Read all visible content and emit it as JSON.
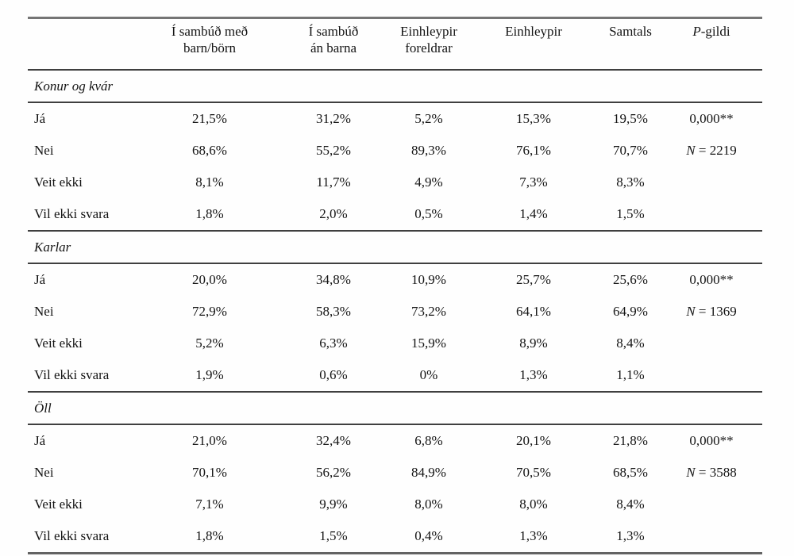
{
  "header": {
    "cols": [
      {
        "line1": "Í sambúð með",
        "line2": "barn/börn"
      },
      {
        "line1": "Í sambúð",
        "line2": "án barna"
      },
      {
        "line1": "Einhleypir",
        "line2": "foreldrar"
      },
      {
        "line1": "Einhleypir"
      },
      {
        "line1": "Samtals"
      },
      {
        "p_italic": "P",
        "p_rest": "-gildi"
      }
    ]
  },
  "sections": [
    {
      "title": "Konur og kvár",
      "rows": [
        {
          "label": "Já",
          "values": [
            "21,5%",
            "31,2%",
            "5,2%",
            "15,3%",
            "19,5%"
          ],
          "stat_italic": "",
          "stat": "0,000**"
        },
        {
          "label": "Nei",
          "values": [
            "68,6%",
            "55,2%",
            "89,3%",
            "76,1%",
            "70,7%"
          ],
          "stat_italic": "N",
          "stat": " = 2219"
        },
        {
          "label": "Veit ekki",
          "values": [
            "8,1%",
            "11,7%",
            "4,9%",
            "7,3%",
            "8,3%"
          ],
          "stat_italic": "",
          "stat": ""
        },
        {
          "label": "Vil ekki svara",
          "values": [
            "1,8%",
            "2,0%",
            "0,5%",
            "1,4%",
            "1,5%"
          ],
          "stat_italic": "",
          "stat": ""
        }
      ]
    },
    {
      "title": "Karlar",
      "rows": [
        {
          "label": "Já",
          "values": [
            "20,0%",
            "34,8%",
            "10,9%",
            "25,7%",
            "25,6%"
          ],
          "stat_italic": "",
          "stat": "0,000**"
        },
        {
          "label": "Nei",
          "values": [
            "72,9%",
            "58,3%",
            "73,2%",
            "64,1%",
            "64,9%"
          ],
          "stat_italic": "N",
          "stat": " = 1369"
        },
        {
          "label": "Veit ekki",
          "values": [
            "5,2%",
            "6,3%",
            "15,9%",
            "8,9%",
            "8,4%"
          ],
          "stat_italic": "",
          "stat": ""
        },
        {
          "label": "Vil ekki svara",
          "values": [
            "1,9%",
            "0,6%",
            "0%",
            "1,3%",
            "1,1%"
          ],
          "stat_italic": "",
          "stat": ""
        }
      ]
    },
    {
      "title": "Öll",
      "rows": [
        {
          "label": "Já",
          "values": [
            "21,0%",
            "32,4%",
            "6,8%",
            "20,1%",
            "21,8%"
          ],
          "stat_italic": "",
          "stat": "0,000**"
        },
        {
          "label": "Nei",
          "values": [
            "70,1%",
            "56,2%",
            "84,9%",
            "70,5%",
            "68,5%"
          ],
          "stat_italic": "N",
          "stat": " = 3588"
        },
        {
          "label": "Veit ekki",
          "values": [
            "7,1%",
            "9,9%",
            "8,0%",
            "8,0%",
            "8,4%"
          ],
          "stat_italic": "",
          "stat": ""
        },
        {
          "label": "Vil ekki svara",
          "values": [
            "1,8%",
            "1,5%",
            "0,4%",
            "1,3%",
            "1,3%"
          ],
          "stat_italic": "",
          "stat": ""
        }
      ]
    }
  ],
  "colors": {
    "rule_heavy": "#757575",
    "rule_light": "#3f3f3f",
    "text": "#141414",
    "background": "#fefefe"
  }
}
